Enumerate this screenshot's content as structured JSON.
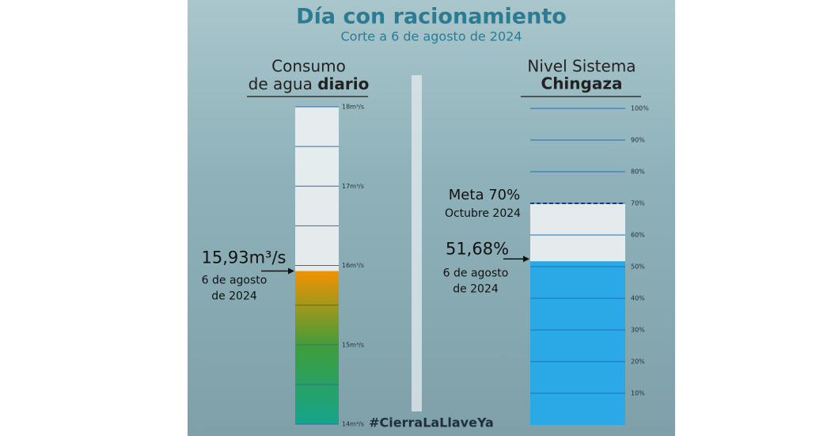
{
  "title": "Día con racionamiento",
  "subtitle": "Corte a 6 de agosto de 2024",
  "hashtag": "#CierraLaLlaveYa",
  "chart_data": [
    {
      "type": "gauge",
      "title": "Consumo",
      "title2": "de agua",
      "title_bold": "diario",
      "values": [
        15.93
      ],
      "value_labels": [
        "15,93m³/s"
      ],
      "date_lines": [
        "6 de agosto",
        "de 2024"
      ],
      "ylim": [
        14,
        18
      ],
      "yticks": [
        {
          "value": 14,
          "label": "14m³/s"
        },
        {
          "value": 15,
          "label": "15m³/s"
        },
        {
          "value": 16,
          "label": "16m³/s"
        },
        {
          "value": 17,
          "label": "17m³/s"
        },
        {
          "value": 18,
          "label": "18m³/s"
        }
      ],
      "minor_ticks": [
        14.5,
        15.5,
        16.5,
        17.5
      ],
      "colors": [
        "#14a58c",
        "#3e9d3c",
        "#f39200"
      ]
    },
    {
      "type": "level",
      "title": "Nivel Sistema",
      "title_bold": "Chingaza",
      "values": [
        51.68
      ],
      "value_labels": [
        "51,68%"
      ],
      "date_lines": [
        "6 de agosto",
        "de 2024"
      ],
      "target": {
        "value": 70,
        "label": "Meta 70%",
        "sublabel": "Octubre 2024"
      },
      "ylim": [
        0,
        100
      ],
      "yticks": [
        {
          "value": 10,
          "label": "10%"
        },
        {
          "value": 20,
          "label": "20%"
        },
        {
          "value": 30,
          "label": "30%"
        },
        {
          "value": 40,
          "label": "40%"
        },
        {
          "value": 50,
          "label": "50%"
        },
        {
          "value": 60,
          "label": "60%"
        },
        {
          "value": 70,
          "label": "70%"
        },
        {
          "value": 80,
          "label": "80%"
        },
        {
          "value": 90,
          "label": "90%"
        },
        {
          "value": 100,
          "label": "100%"
        }
      ],
      "color": "#2aa9e6"
    }
  ]
}
